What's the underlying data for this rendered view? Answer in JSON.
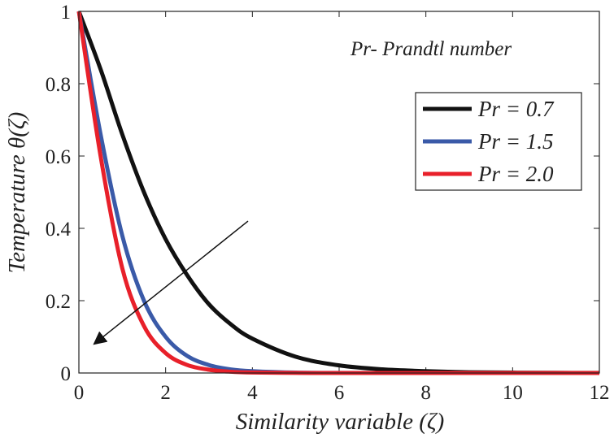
{
  "chart_data": {
    "type": "line",
    "title": "",
    "xlabel": "Similarity variable (ζ)",
    "ylabel": "Temperature  θ(ζ)",
    "xlim": [
      0,
      12
    ],
    "ylim": [
      0,
      1
    ],
    "xticks": [
      0,
      2,
      4,
      6,
      8,
      10,
      12
    ],
    "xtick_labels": [
      "0",
      "2",
      "4",
      "6",
      "8",
      "10",
      "12"
    ],
    "yticks": [
      0,
      0.2,
      0.4,
      0.6,
      0.8,
      1
    ],
    "ytick_labels": [
      "0",
      "0.2",
      "0.4",
      "0.6",
      "0.8",
      "1"
    ],
    "grid": false,
    "legend_position": "top-right",
    "annotation": "Pr- Prandtl number",
    "x": [
      0,
      0.5,
      1,
      1.5,
      2,
      2.5,
      3,
      3.5,
      4,
      5,
      6,
      7,
      8,
      9,
      10,
      11,
      12
    ],
    "series": [
      {
        "name": "Pr = 0.7",
        "color": "#111111",
        "values": [
          1.0,
          0.84,
          0.66,
          0.5,
          0.37,
          0.27,
          0.19,
          0.135,
          0.095,
          0.045,
          0.021,
          0.01,
          0.005,
          0.002,
          0.001,
          0.0005,
          0.0002
        ]
      },
      {
        "name": "Pr = 1.5",
        "color": "#3a5aa8",
        "values": [
          1.0,
          0.66,
          0.38,
          0.2,
          0.1,
          0.047,
          0.022,
          0.01,
          0.005,
          0.001,
          0.0003,
          0.0001,
          0,
          0,
          0,
          0,
          0
        ]
      },
      {
        "name": "Pr = 2.0",
        "color": "#e8202a",
        "values": [
          1.0,
          0.6,
          0.29,
          0.13,
          0.055,
          0.022,
          0.009,
          0.0035,
          0.0013,
          0.0002,
          0,
          0,
          0,
          0,
          0,
          0,
          0
        ]
      }
    ],
    "arrow": {
      "from": [
        3.9,
        0.42
      ],
      "to": [
        0.35,
        0.08
      ],
      "meaning": "increasing Pr"
    }
  }
}
